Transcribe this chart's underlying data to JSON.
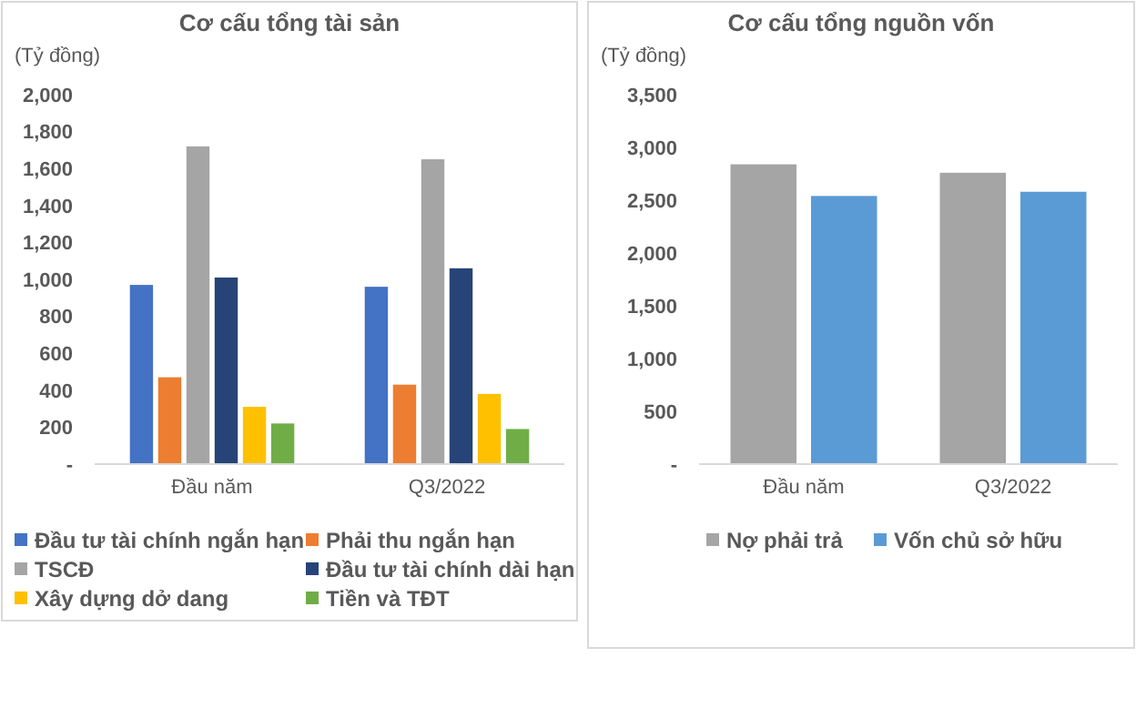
{
  "chart_data": [
    {
      "type": "bar",
      "title": "Cơ cấu tổng tài sản",
      "ylabel": "(Tỷ đồng)",
      "categories": [
        "Đầu năm",
        "Q3/2022"
      ],
      "series": [
        {
          "name": "Đầu tư tài chính ngắn hạn",
          "color": "#4472c4",
          "values": [
            970,
            960
          ]
        },
        {
          "name": "Phải thu ngắn hạn",
          "color": "#ed7d31",
          "values": [
            470,
            430
          ]
        },
        {
          "name": "TSCĐ",
          "color": "#a5a5a5",
          "values": [
            1720,
            1650
          ]
        },
        {
          "name": "Đầu tư tài chính dài hạn",
          "color": "#264478",
          "values": [
            1010,
            1060
          ]
        },
        {
          "name": "Xây dựng dở dang",
          "color": "#ffc000",
          "values": [
            310,
            380
          ]
        },
        {
          "name": "Tiền và TĐT",
          "color": "#70ad47",
          "values": [
            220,
            190
          ]
        }
      ],
      "ylim": [
        0,
        2000
      ],
      "yticks": [
        {
          "value": 0,
          "label": "-"
        },
        {
          "value": 200,
          "label": "200"
        },
        {
          "value": 400,
          "label": "400"
        },
        {
          "value": 600,
          "label": "600"
        },
        {
          "value": 800,
          "label": "800"
        },
        {
          "value": 1000,
          "label": "1,000"
        },
        {
          "value": 1200,
          "label": "1,200"
        },
        {
          "value": 1400,
          "label": "1,400"
        },
        {
          "value": 1600,
          "label": "1,600"
        },
        {
          "value": 1800,
          "label": "1,800"
        },
        {
          "value": 2000,
          "label": "2,000"
        }
      ],
      "grid": false,
      "legend": "bottom"
    },
    {
      "type": "bar",
      "title": "Cơ cấu tổng nguồn vốn",
      "ylabel": "(Tỷ đồng)",
      "categories": [
        "Đầu năm",
        "Q3/2022"
      ],
      "series": [
        {
          "name": "Nợ phải trả",
          "color": "#a5a5a5",
          "values": [
            2840,
            2760
          ]
        },
        {
          "name": "Vốn chủ sở hữu",
          "color": "#5b9bd5",
          "values": [
            2540,
            2580
          ]
        }
      ],
      "ylim": [
        0,
        3500
      ],
      "yticks": [
        {
          "value": 0,
          "label": "-"
        },
        {
          "value": 500,
          "label": "500"
        },
        {
          "value": 1000,
          "label": "1,000"
        },
        {
          "value": 1500,
          "label": "1,500"
        },
        {
          "value": 2000,
          "label": "2,000"
        },
        {
          "value": 2500,
          "label": "2,500"
        },
        {
          "value": 3000,
          "label": "3,000"
        },
        {
          "value": 3500,
          "label": "3,500"
        }
      ],
      "grid": false,
      "legend": "bottom"
    }
  ]
}
